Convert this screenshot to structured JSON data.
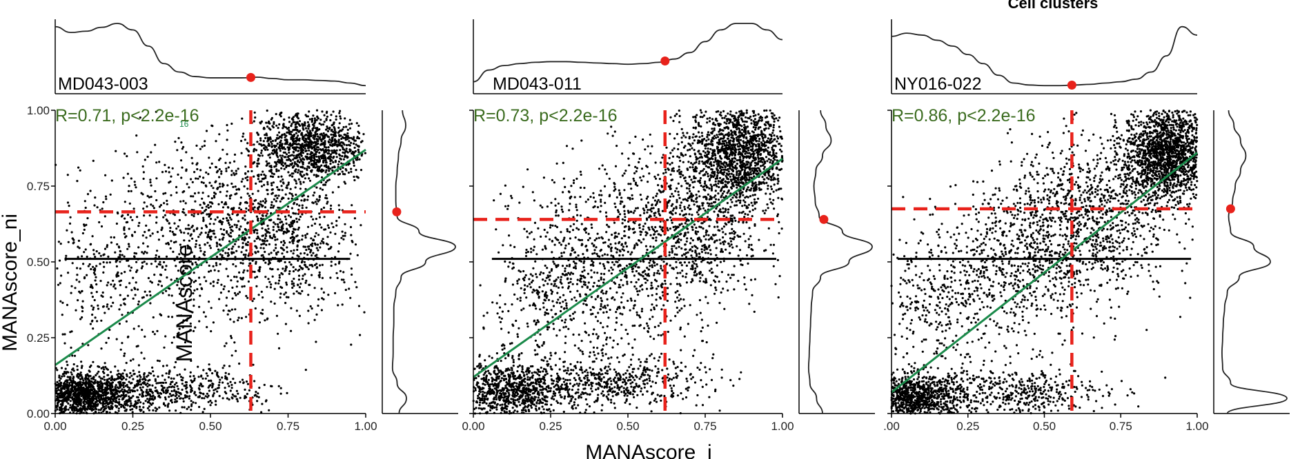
{
  "figure": {
    "legend_title": "Cell clusters",
    "shared_xlabel": "MANAscore_i",
    "shared_ylabel": "MANAscore_ni",
    "overlay_label": "MANAscore"
  },
  "colors": {
    "points": "#000000",
    "regression": "#1a8a4a",
    "threshold": "#e8221b",
    "stats_text": "#3a6b1e",
    "density": "#222222",
    "axis": "#000000"
  },
  "chart_data": [
    {
      "type": "scatter",
      "sample": "MD043-003",
      "stats_label": "R=0.71, p<2.2e-16",
      "stats_annotation": "16",
      "r": 0.71,
      "xlabel": "MANAscore_i",
      "ylabel": "MANAscore_ni",
      "xlim": [
        0,
        1
      ],
      "ylim": [
        0,
        1
      ],
      "x_tick_labels": [
        "0.00",
        "0.25",
        "0.50",
        "0.75",
        "1.00"
      ],
      "y_tick_labels": [
        "0.00",
        "0.25",
        "0.50",
        "0.75",
        "1.00"
      ],
      "threshold_x": 0.63,
      "threshold_y": 0.665,
      "regression": {
        "intercept": 0.16,
        "slope": 0.71
      },
      "median_line_y": 0.51,
      "median_line_xrange": [
        0.03,
        0.95
      ],
      "point_clusters": [
        {
          "cx": 0.09,
          "cy": 0.06,
          "sx": 0.08,
          "sy": 0.04,
          "n": 1200
        },
        {
          "cx": 0.3,
          "cy": 0.07,
          "sx": 0.12,
          "sy": 0.04,
          "n": 450
        },
        {
          "cx": 0.55,
          "cy": 0.08,
          "sx": 0.1,
          "sy": 0.04,
          "n": 120
        },
        {
          "cx": 0.82,
          "cy": 0.88,
          "sx": 0.09,
          "sy": 0.06,
          "n": 1100
        },
        {
          "cx": 0.62,
          "cy": 0.62,
          "sx": 0.13,
          "sy": 0.13,
          "n": 650
        },
        {
          "cx": 0.4,
          "cy": 0.55,
          "sx": 0.15,
          "sy": 0.18,
          "n": 550
        },
        {
          "cx": 0.12,
          "cy": 0.42,
          "sx": 0.08,
          "sy": 0.14,
          "n": 220
        },
        {
          "cx": 0.8,
          "cy": 0.55,
          "sx": 0.1,
          "sy": 0.12,
          "n": 350
        }
      ],
      "x_density": [
        0.95,
        0.86,
        0.88,
        0.94,
        1.0,
        0.9,
        0.65,
        0.38,
        0.25,
        0.18,
        0.16,
        0.16,
        0.16,
        0.17,
        0.15,
        0.13,
        0.13,
        0.12,
        0.11,
        0.08,
        0.04
      ],
      "y_density": [
        0.15,
        0.26,
        0.12,
        0.05,
        0.06,
        0.06,
        0.07,
        0.07,
        0.1,
        0.18,
        0.55,
        1.0,
        0.45,
        0.12,
        0.1,
        0.1,
        0.12,
        0.14,
        0.18,
        0.25,
        0.2
      ],
      "y_density_marker": 0.665,
      "x_density_marker": 0.63
    },
    {
      "type": "scatter",
      "sample": "MD043-011",
      "stats_label": "R=0.73, p<2.2e-16",
      "stats_annotation": "",
      "r": 0.73,
      "xlabel": "MANAscore_i",
      "ylabel": "MANAscore_ni",
      "xlim": [
        0,
        1
      ],
      "ylim": [
        0,
        1
      ],
      "x_tick_labels": [
        "0.00",
        "0.25",
        "0.50",
        "0.75",
        "1.00"
      ],
      "y_tick_labels": [
        "0.00",
        "0.25",
        "0.50",
        "0.75",
        "1.00"
      ],
      "threshold_x": 0.62,
      "threshold_y": 0.64,
      "regression": {
        "intercept": 0.12,
        "slope": 0.72
      },
      "median_line_y": 0.51,
      "median_line_xrange": [
        0.06,
        0.98
      ],
      "point_clusters": [
        {
          "cx": 0.12,
          "cy": 0.07,
          "sx": 0.09,
          "sy": 0.05,
          "n": 900
        },
        {
          "cx": 0.45,
          "cy": 0.1,
          "sx": 0.15,
          "sy": 0.04,
          "n": 500
        },
        {
          "cx": 0.86,
          "cy": 0.86,
          "sx": 0.08,
          "sy": 0.09,
          "n": 1500
        },
        {
          "cx": 0.7,
          "cy": 0.62,
          "sx": 0.12,
          "sy": 0.14,
          "n": 900
        },
        {
          "cx": 0.42,
          "cy": 0.48,
          "sx": 0.14,
          "sy": 0.17,
          "n": 800
        },
        {
          "cx": 0.2,
          "cy": 0.36,
          "sx": 0.09,
          "sy": 0.12,
          "n": 200
        }
      ],
      "x_density": [
        0.1,
        0.28,
        0.35,
        0.38,
        0.4,
        0.41,
        0.41,
        0.4,
        0.39,
        0.38,
        0.37,
        0.38,
        0.4,
        0.45,
        0.55,
        0.72,
        0.9,
        1.0,
        1.0,
        0.9,
        0.75
      ],
      "y_density": [
        0.25,
        0.16,
        0.06,
        0.04,
        0.05,
        0.06,
        0.07,
        0.08,
        0.1,
        0.22,
        0.65,
        1.0,
        0.55,
        0.2,
        0.14,
        0.12,
        0.15,
        0.25,
        0.38,
        0.3,
        0.22
      ],
      "y_density_marker": 0.64,
      "x_density_marker": 0.62
    },
    {
      "type": "scatter",
      "sample": "NY016-022",
      "stats_label": "R=0.86, p<2.2e-16",
      "stats_annotation": "",
      "r": 0.86,
      "xlabel": "MANAscore_i",
      "ylabel": "MANAscore_ni",
      "xlim": [
        0,
        1
      ],
      "ylim": [
        0,
        1
      ],
      "x_tick_labels": [
        ".00",
        "0.25",
        "0.50",
        "0.75",
        "1.00"
      ],
      "y_tick_labels": [
        "0.00",
        "0.25",
        "0.50",
        "0.75",
        "1.00"
      ],
      "threshold_x": 0.59,
      "threshold_y": 0.675,
      "regression": {
        "intercept": 0.07,
        "slope": 0.79
      },
      "median_line_y": 0.51,
      "median_line_xrange": [
        0.02,
        0.98
      ],
      "point_clusters": [
        {
          "cx": 0.08,
          "cy": 0.05,
          "sx": 0.08,
          "sy": 0.04,
          "n": 1000
        },
        {
          "cx": 0.4,
          "cy": 0.07,
          "sx": 0.15,
          "sy": 0.04,
          "n": 450
        },
        {
          "cx": 0.9,
          "cy": 0.86,
          "sx": 0.07,
          "sy": 0.08,
          "n": 1700
        },
        {
          "cx": 0.65,
          "cy": 0.65,
          "sx": 0.13,
          "sy": 0.13,
          "n": 900
        },
        {
          "cx": 0.42,
          "cy": 0.5,
          "sx": 0.13,
          "sy": 0.13,
          "n": 700
        },
        {
          "cx": 0.15,
          "cy": 0.38,
          "sx": 0.09,
          "sy": 0.11,
          "n": 300
        }
      ],
      "x_density": [
        0.8,
        0.85,
        0.82,
        0.74,
        0.65,
        0.52,
        0.38,
        0.2,
        0.08,
        0.05,
        0.04,
        0.04,
        0.05,
        0.06,
        0.08,
        0.1,
        0.14,
        0.25,
        0.5,
        0.95,
        0.82
      ],
      "y_density": [
        0.1,
        1.0,
        0.15,
        0.03,
        0.02,
        0.03,
        0.04,
        0.06,
        0.1,
        0.28,
        0.75,
        0.5,
        0.15,
        0.12,
        0.18,
        0.22,
        0.3,
        0.38,
        0.3,
        0.2,
        0.12
      ],
      "y_density_marker": 0.675,
      "x_density_marker": 0.59
    }
  ]
}
